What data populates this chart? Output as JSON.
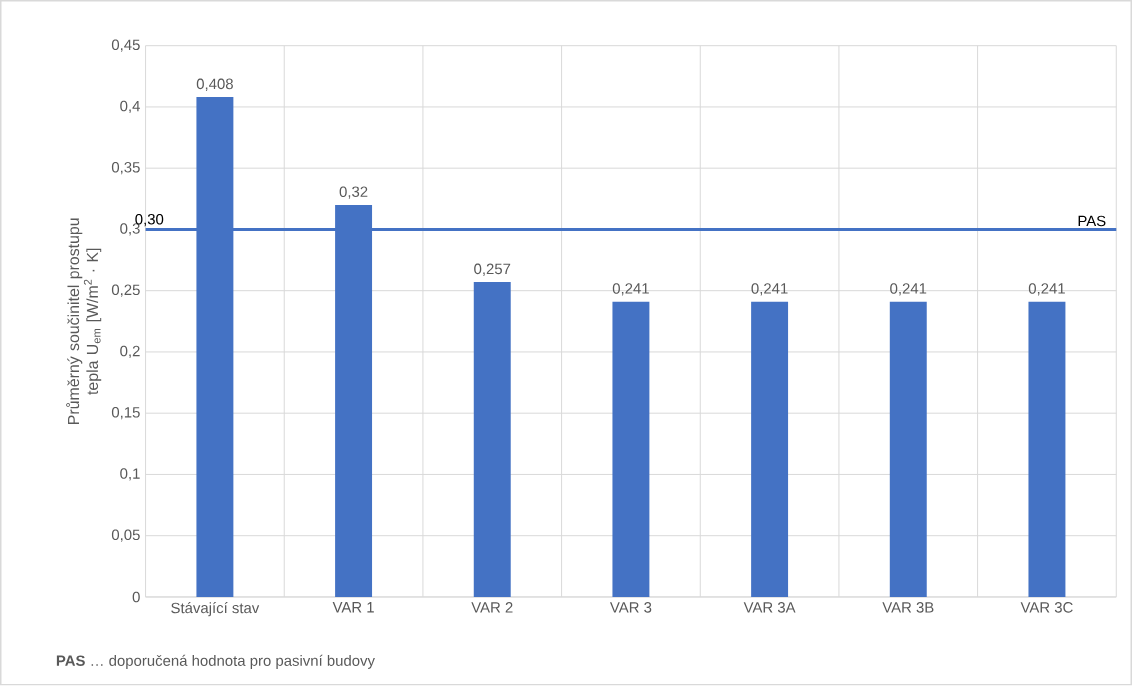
{
  "chart_data": {
    "type": "bar",
    "ylabel": "Průměrný součinitel prostupu tepla U$_{em}$ [W/m$^{2}$ · K]",
    "categories": [
      "Stávající stav",
      "VAR 1",
      "VAR 2",
      "VAR 3",
      "VAR 3A",
      "VAR 3B",
      "VAR 3C"
    ],
    "values": [
      0.408,
      0.32,
      0.257,
      0.241,
      0.241,
      0.241,
      0.241
    ],
    "value_labels": [
      "0,408",
      "0,32",
      "0,257",
      "0,241",
      "0,241",
      "0,241",
      "0,241"
    ],
    "color": "#4472c4",
    "ylim": [
      0,
      0.45
    ],
    "yticks": [
      {
        "value": 0,
        "label": "0"
      },
      {
        "value": 0.05,
        "label": "0,05"
      },
      {
        "value": 0.1,
        "label": "0,1"
      },
      {
        "value": 0.15,
        "label": "0,15"
      },
      {
        "value": 0.2,
        "label": "0,2"
      },
      {
        "value": 0.25,
        "label": "0,25"
      },
      {
        "value": 0.3,
        "label": "0,3"
      },
      {
        "value": 0.35,
        "label": "0,35"
      },
      {
        "value": 0.4,
        "label": "0,4"
      },
      {
        "value": 0.45,
        "label": "0,45"
      }
    ],
    "grid": true,
    "ref_lines": [
      {
        "axis": "y",
        "value": 0.3,
        "label": "PAS",
        "color": "#4472c4"
      }
    ],
    "annotations": [
      {
        "text": "0,30",
        "y": 0.3
      },
      "**PAS** … doporučená hodnota pro pasivní budovy"
    ]
  }
}
